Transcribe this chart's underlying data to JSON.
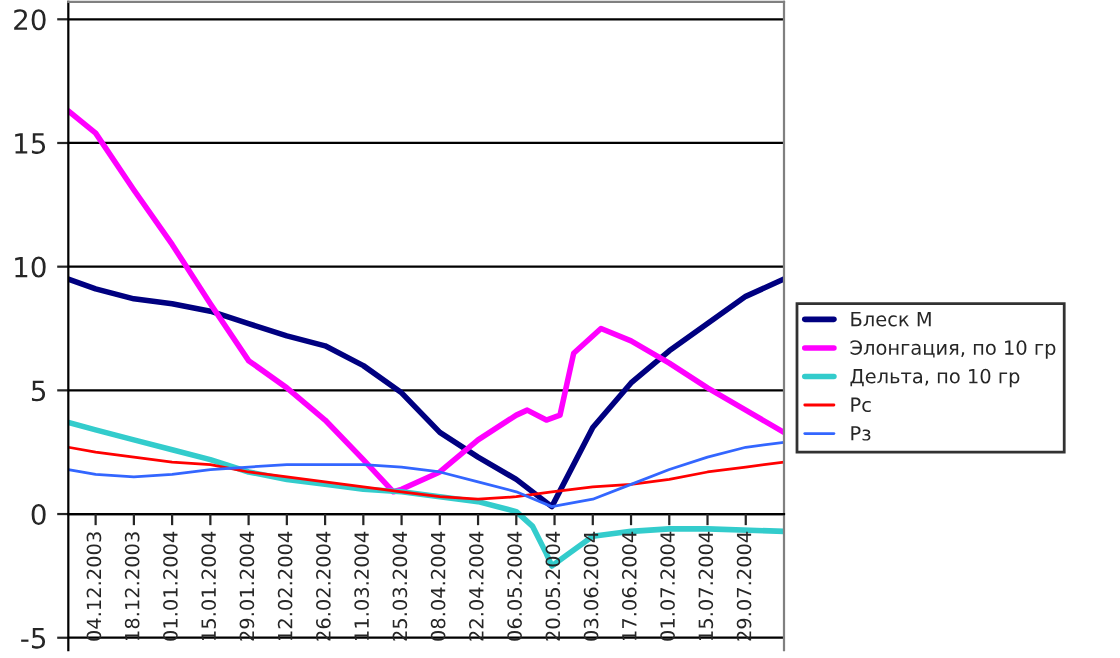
{
  "chart_data": {
    "type": "line",
    "xlim": [
      "2003-11-24",
      "2004-08-12"
    ],
    "xticks": [
      {
        "value": "2003-12-04",
        "label": "04.12.2003"
      },
      {
        "value": "2003-12-18",
        "label": "18.12.2003"
      },
      {
        "value": "2004-01-01",
        "label": "01.01.2004"
      },
      {
        "value": "2004-01-15",
        "label": "15.01.2004"
      },
      {
        "value": "2004-01-29",
        "label": "29.01.2004"
      },
      {
        "value": "2004-02-12",
        "label": "12.02.2004"
      },
      {
        "value": "2004-02-26",
        "label": "26.02.2004"
      },
      {
        "value": "2004-03-11",
        "label": "11.03.2004"
      },
      {
        "value": "2004-03-25",
        "label": "25.03.2004"
      },
      {
        "value": "2004-04-08",
        "label": "08.04.2004"
      },
      {
        "value": "2004-04-22",
        "label": "22.04.2004"
      },
      {
        "value": "2004-05-06",
        "label": "06.05.2004"
      },
      {
        "value": "2004-05-20",
        "label": "20.05.2004"
      },
      {
        "value": "2004-06-03",
        "label": "03.06.2004"
      },
      {
        "value": "2004-06-17",
        "label": "17.06.2004"
      },
      {
        "value": "2004-07-01",
        "label": "01.07.2004"
      },
      {
        "value": "2004-07-15",
        "label": "15.07.2004"
      },
      {
        "value": "2004-07-29",
        "label": "29.07.2004"
      }
    ],
    "ylim": [
      -5.5,
      20.7
    ],
    "yticks": [
      -5,
      0,
      5,
      10,
      15,
      20
    ],
    "grid": "y",
    "legend": "right",
    "marker": "none",
    "line_style": "solid",
    "series": [
      {
        "name": "Блеск M",
        "color": "#000080",
        "x": [
          "2003-11-24",
          "2003-12-04",
          "2003-12-18",
          "2004-01-01",
          "2004-01-15",
          "2004-01-29",
          "2004-02-12",
          "2004-02-26",
          "2004-03-11",
          "2004-03-25",
          "2004-04-08",
          "2004-04-22",
          "2004-05-06",
          "2004-05-19",
          "2004-06-03",
          "2004-06-17",
          "2004-07-01",
          "2004-07-15",
          "2004-07-29",
          "2004-08-12"
        ],
        "values": [
          9.5,
          9.1,
          8.7,
          8.5,
          8.2,
          7.7,
          7.2,
          6.8,
          6.0,
          4.9,
          3.3,
          2.3,
          1.4,
          0.3,
          3.5,
          5.3,
          6.6,
          7.7,
          8.8,
          9.5
        ]
      },
      {
        "name": "Элонгация, по 10 гр",
        "color": "#ff00ff",
        "x": [
          "2003-11-24",
          "2003-12-04",
          "2003-12-18",
          "2004-01-01",
          "2004-01-15",
          "2004-01-29",
          "2004-02-12",
          "2004-02-26",
          "2004-03-11",
          "2004-03-22",
          "2004-03-25",
          "2004-04-08",
          "2004-04-22",
          "2004-05-06",
          "2004-05-10",
          "2004-05-17",
          "2004-05-22",
          "2004-05-27",
          "2004-06-06",
          "2004-06-17",
          "2004-07-01",
          "2004-07-15",
          "2004-07-29",
          "2004-08-12"
        ],
        "values": [
          16.3,
          15.4,
          13.1,
          10.9,
          8.5,
          6.2,
          5.1,
          3.8,
          2.2,
          0.9,
          1.0,
          1.7,
          3.0,
          4.0,
          4.2,
          3.8,
          4.0,
          6.5,
          7.5,
          7.0,
          6.1,
          5.1,
          4.2,
          3.3
        ]
      },
      {
        "name": "Дельта, по 10 гр",
        "color": "#33cccc",
        "x": [
          "2003-11-24",
          "2003-12-04",
          "2003-12-18",
          "2004-01-01",
          "2004-01-15",
          "2004-01-29",
          "2004-02-12",
          "2004-02-26",
          "2004-03-11",
          "2004-03-25",
          "2004-04-08",
          "2004-04-22",
          "2004-05-06",
          "2004-05-12",
          "2004-05-17",
          "2004-05-19",
          "2004-05-24",
          "2004-06-03",
          "2004-06-17",
          "2004-07-01",
          "2004-07-15",
          "2004-08-12"
        ],
        "values": [
          3.7,
          3.4,
          3.0,
          2.6,
          2.2,
          1.7,
          1.4,
          1.2,
          1.0,
          0.9,
          0.7,
          0.5,
          0.1,
          -0.5,
          -1.6,
          -2.1,
          -1.7,
          -0.9,
          -0.7,
          -0.6,
          -0.6,
          -0.7
        ]
      },
      {
        "name": "Рс",
        "color": "#ff0000",
        "x": [
          "2003-11-24",
          "2003-12-04",
          "2003-12-18",
          "2004-01-01",
          "2004-01-15",
          "2004-01-29",
          "2004-02-12",
          "2004-02-26",
          "2004-03-11",
          "2004-03-25",
          "2004-04-08",
          "2004-04-22",
          "2004-05-06",
          "2004-05-19",
          "2004-06-03",
          "2004-06-17",
          "2004-07-01",
          "2004-07-15",
          "2004-07-29",
          "2004-08-12"
        ],
        "values": [
          2.7,
          2.5,
          2.3,
          2.1,
          2.0,
          1.7,
          1.5,
          1.3,
          1.1,
          0.9,
          0.7,
          0.6,
          0.7,
          0.9,
          1.1,
          1.2,
          1.4,
          1.7,
          1.9,
          2.1
        ]
      },
      {
        "name": "Рз",
        "color": "#3366ff",
        "x": [
          "2003-11-24",
          "2003-12-04",
          "2003-12-18",
          "2004-01-01",
          "2004-01-15",
          "2004-01-29",
          "2004-02-12",
          "2004-02-26",
          "2004-03-11",
          "2004-03-25",
          "2004-04-08",
          "2004-04-22",
          "2004-05-06",
          "2004-05-19",
          "2004-06-03",
          "2004-06-17",
          "2004-07-01",
          "2004-07-15",
          "2004-07-29",
          "2004-08-12"
        ],
        "values": [
          1.8,
          1.6,
          1.5,
          1.6,
          1.8,
          1.9,
          2.0,
          2.0,
          2.0,
          1.9,
          1.7,
          1.3,
          0.9,
          0.3,
          0.6,
          1.2,
          1.8,
          2.3,
          2.7,
          2.9
        ]
      }
    ]
  }
}
